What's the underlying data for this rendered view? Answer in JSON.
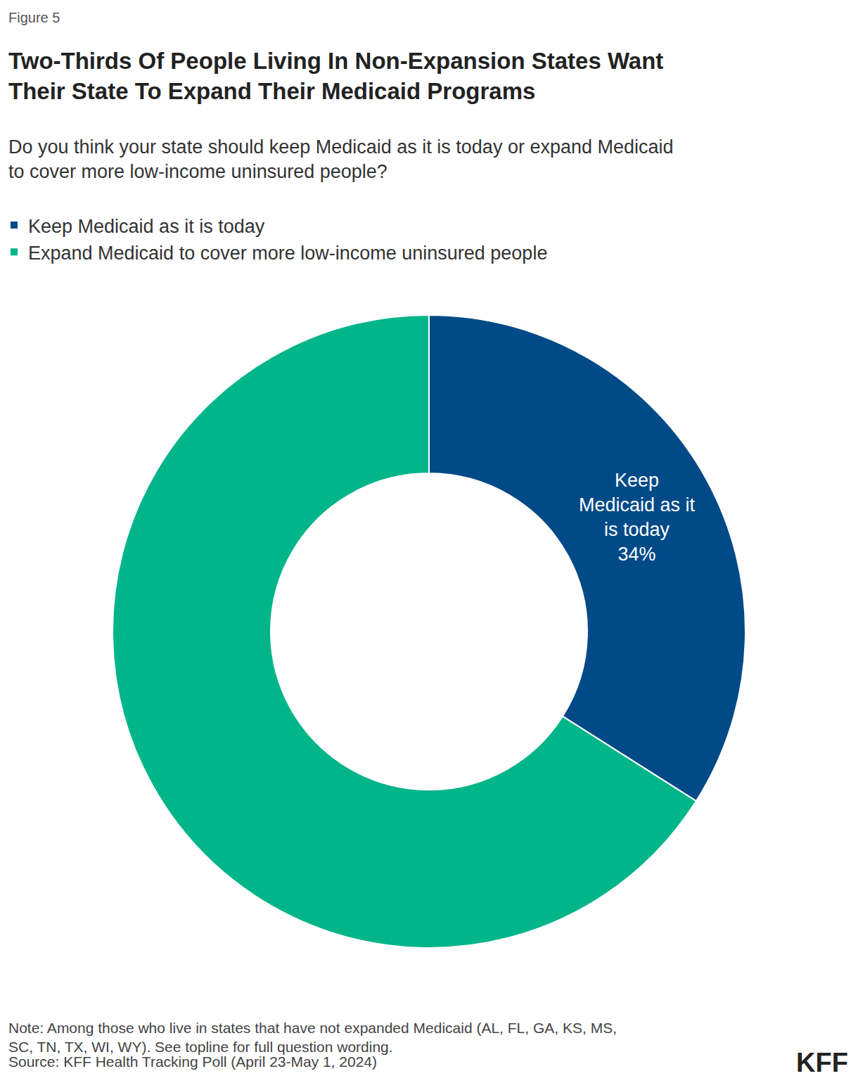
{
  "chart_data": {
    "type": "pie",
    "figure_label": "Figure 5",
    "title": "Two-Thirds Of People Living In Non-Expansion States Want\nTheir State To Expand Their Medicaid Programs",
    "subtitle": "Do you think your state should keep Medicaid as it is today or expand Medicaid\nto cover more low-income uninsured people?",
    "categories": [
      "Keep Medicaid as it is today",
      "Expand Medicaid to cover more low-income uninsured people"
    ],
    "values": [
      34,
      66
    ],
    "value_labels": [
      "Keep\nMedicaid as it\nis today\n34%",
      null
    ],
    "colors": [
      "#004a87",
      "#00b58a"
    ],
    "data_labels": true,
    "legend": "top left",
    "note": "Note: Among those who live in states that have not expanded Medicaid (AL, FL, GA, KS, MS,\nSC, TN, TX, WI, WY). See topline for full question wording.",
    "source": "Source: KFF Health Tracking Poll (April 23-May 1, 2024)",
    "logo": "KFF"
  }
}
